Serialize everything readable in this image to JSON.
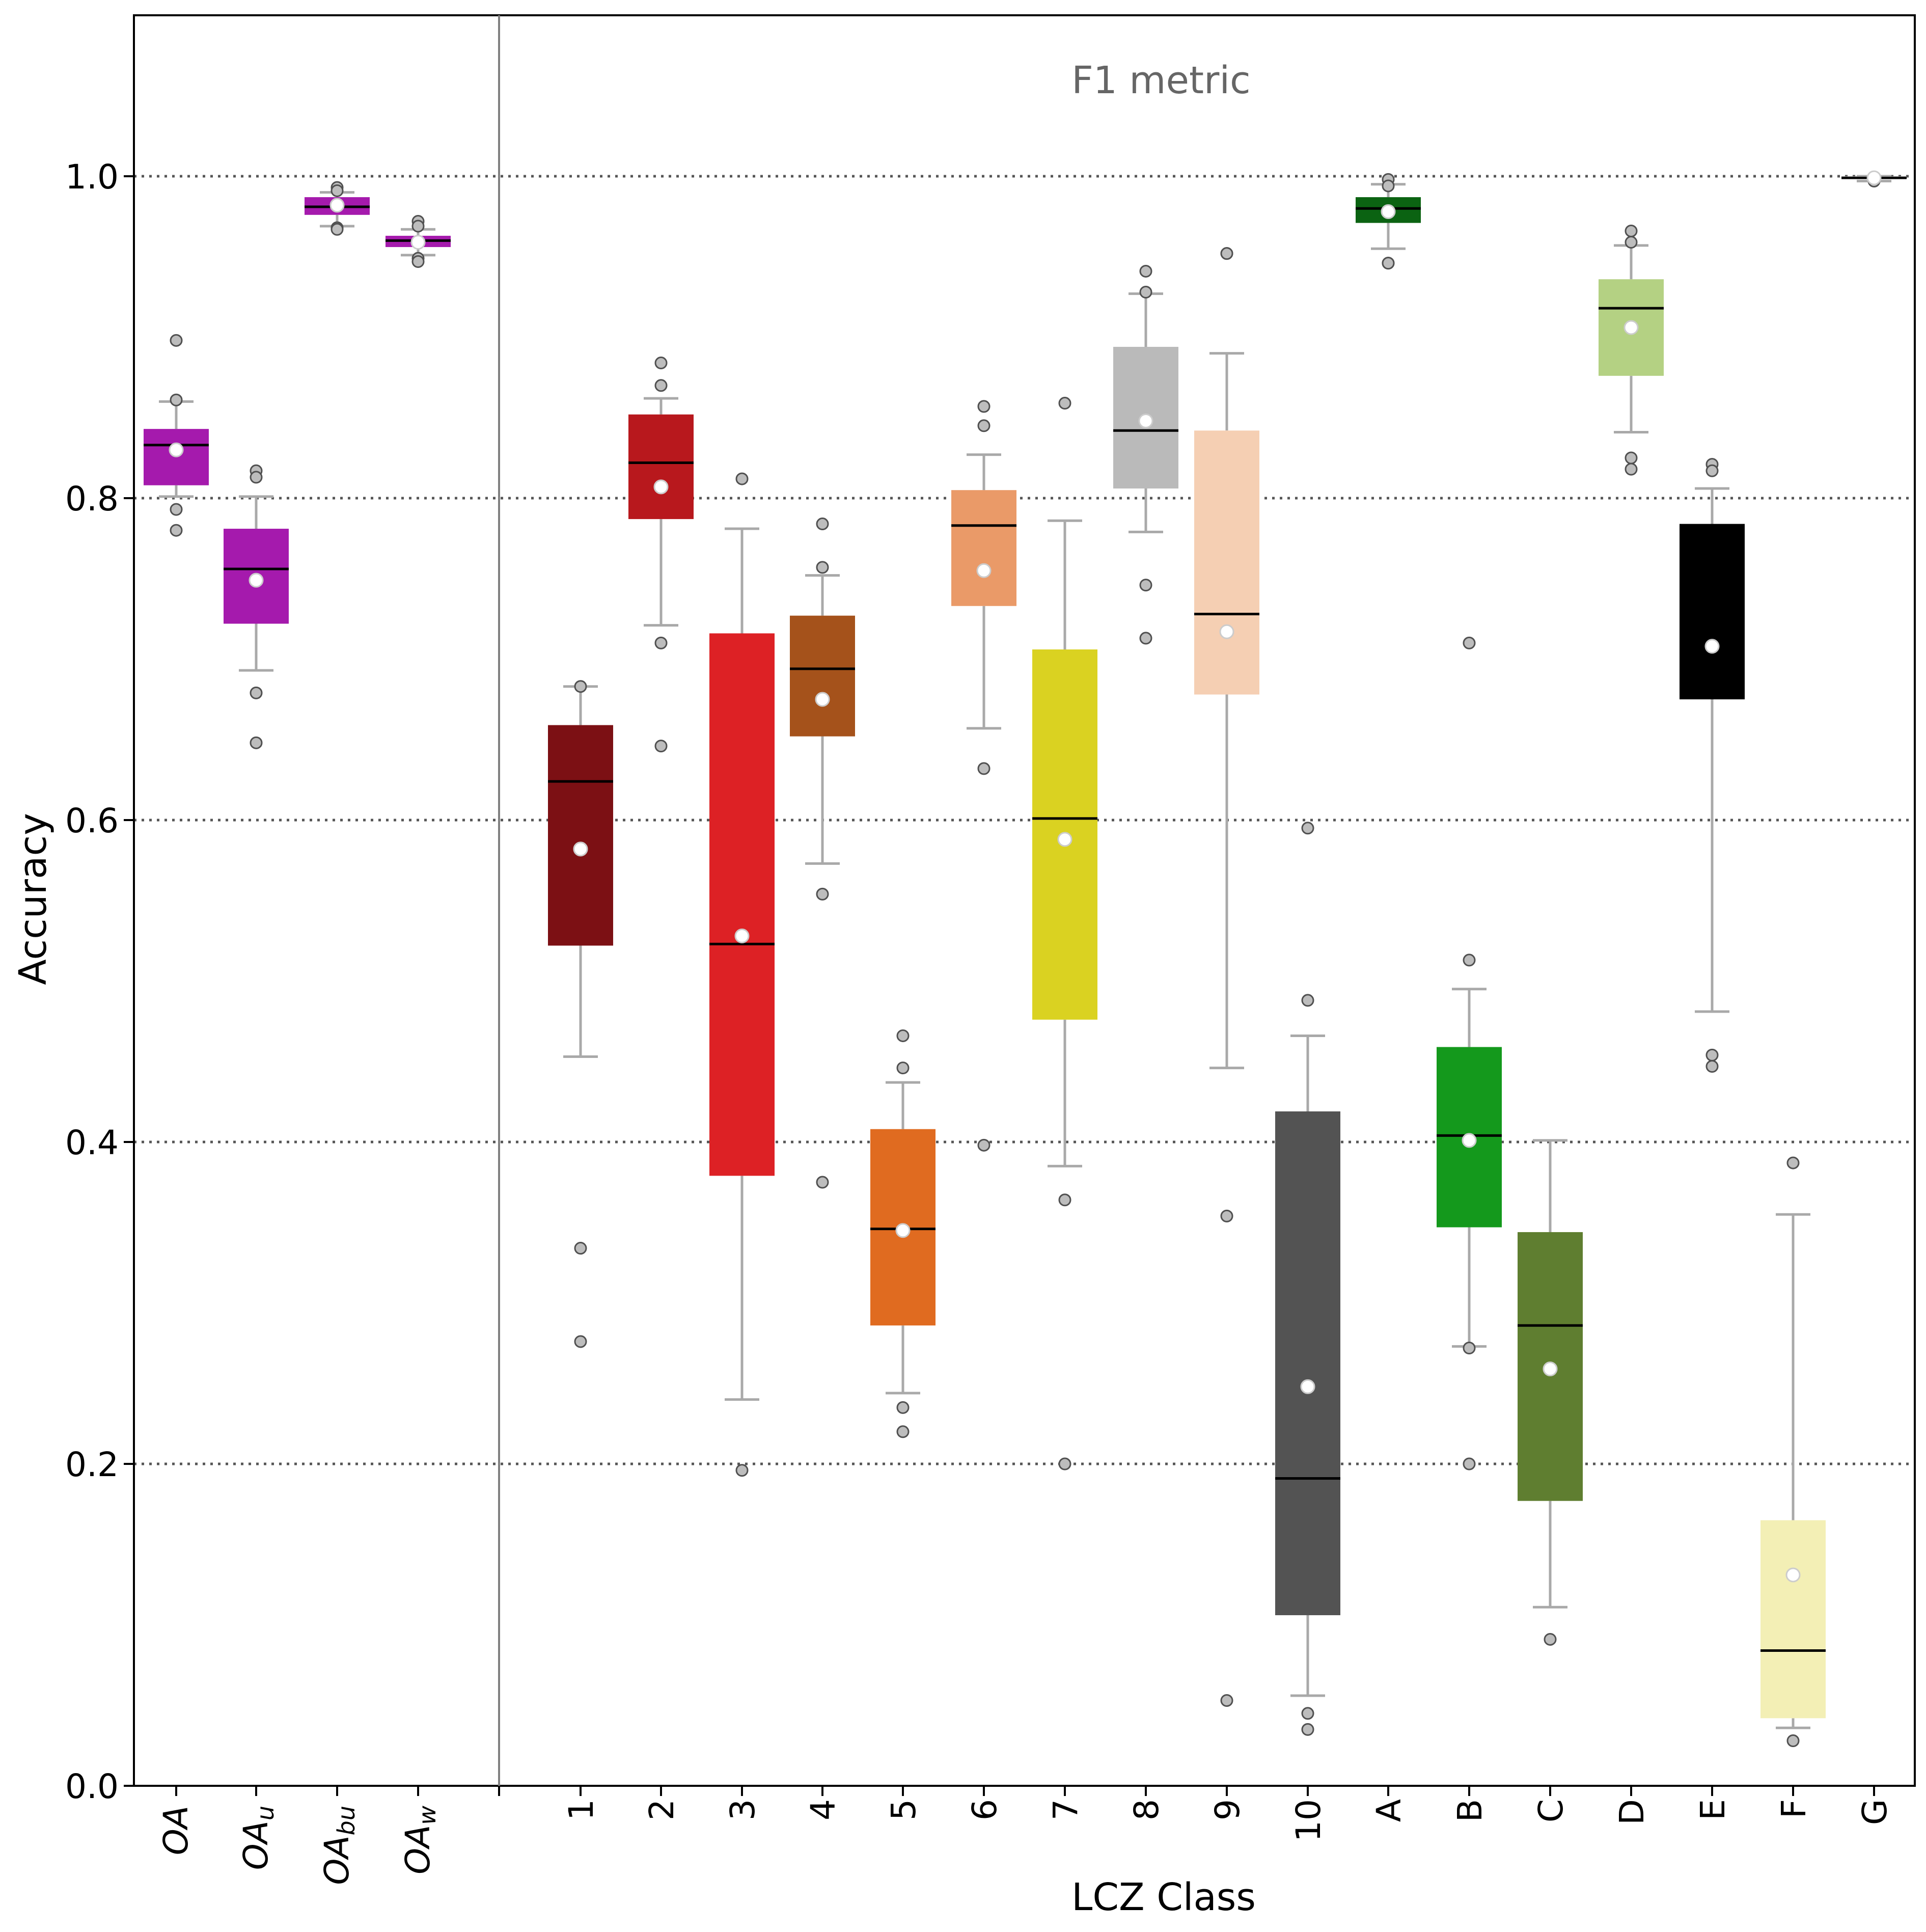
{
  "chart_data": {
    "type": "box",
    "title": "F1 metric",
    "xlabel": "LCZ Class",
    "ylabel": "Accuracy",
    "ylim": [
      0.0,
      1.1
    ],
    "yticks": [
      0.0,
      0.2,
      0.4,
      0.6,
      0.8,
      1.0
    ],
    "ytick_labels": [
      "0.0",
      "0.2",
      "0.4",
      "0.6",
      "0.8",
      "1.0"
    ],
    "grid": "horizontal dotted at major ticks",
    "overall_group": [
      {
        "label": "OA",
        "sub": "",
        "color": "#a51aad",
        "q1": 0.808,
        "median": 0.833,
        "q3": 0.843,
        "mean": 0.83,
        "whisker_low": 0.801,
        "whisker_high": 0.86,
        "outliers": [
          0.898,
          0.861,
          0.793,
          0.78
        ]
      },
      {
        "label": "OA",
        "sub": "u",
        "color": "#a51aad",
        "q1": 0.722,
        "median": 0.756,
        "q3": 0.781,
        "mean": 0.749,
        "whisker_low": 0.693,
        "whisker_high": 0.801,
        "outliers": [
          0.817,
          0.813,
          0.679,
          0.648
        ]
      },
      {
        "label": "OA",
        "sub": "bu",
        "color": "#a51aad",
        "q1": 0.976,
        "median": 0.981,
        "q3": 0.987,
        "mean": 0.982,
        "whisker_low": 0.969,
        "whisker_high": 0.99,
        "outliers": [
          0.993,
          0.991,
          0.968,
          0.967
        ]
      },
      {
        "label": "OA",
        "sub": "w",
        "color": "#a51aad",
        "q1": 0.956,
        "median": 0.96,
        "q3": 0.963,
        "mean": 0.959,
        "whisker_low": 0.951,
        "whisker_high": 0.967,
        "outliers": [
          0.972,
          0.969,
          0.949,
          0.947
        ]
      }
    ],
    "categories": [
      "1",
      "2",
      "3",
      "4",
      "5",
      "6",
      "7",
      "8",
      "9",
      "10",
      "A",
      "B",
      "C",
      "D",
      "E",
      "F",
      "G"
    ],
    "series": [
      {
        "name": "1",
        "color": "#7c1014",
        "q1": 0.522,
        "median": 0.624,
        "q3": 0.659,
        "mean": 0.582,
        "whisker_low": 0.453,
        "whisker_high": 0.683,
        "outliers": [
          0.683,
          0.334,
          0.276
        ]
      },
      {
        "name": "2",
        "color": "#b8181d",
        "q1": 0.787,
        "median": 0.822,
        "q3": 0.852,
        "mean": 0.807,
        "whisker_low": 0.721,
        "whisker_high": 0.862,
        "outliers": [
          0.884,
          0.87,
          0.71,
          0.646
        ]
      },
      {
        "name": "3",
        "color": "#dd2125",
        "q1": 0.379,
        "median": 0.523,
        "q3": 0.716,
        "mean": 0.528,
        "whisker_low": 0.24,
        "whisker_high": 0.781,
        "outliers": [
          0.812,
          0.196
        ]
      },
      {
        "name": "4",
        "color": "#a5521b",
        "q1": 0.652,
        "median": 0.694,
        "q3": 0.727,
        "mean": 0.675,
        "whisker_low": 0.573,
        "whisker_high": 0.752,
        "outliers": [
          0.784,
          0.757,
          0.554,
          0.375
        ]
      },
      {
        "name": "5",
        "color": "#e06b20",
        "q1": 0.286,
        "median": 0.346,
        "q3": 0.408,
        "mean": 0.345,
        "whisker_low": 0.244,
        "whisker_high": 0.437,
        "outliers": [
          0.466,
          0.446,
          0.235,
          0.22
        ]
      },
      {
        "name": "6",
        "color": "#ea9a68",
        "q1": 0.733,
        "median": 0.783,
        "q3": 0.805,
        "mean": 0.755,
        "whisker_low": 0.657,
        "whisker_high": 0.827,
        "outliers": [
          0.857,
          0.845,
          0.632,
          0.398
        ]
      },
      {
        "name": "7",
        "color": "#dad221",
        "q1": 0.476,
        "median": 0.601,
        "q3": 0.706,
        "mean": 0.588,
        "whisker_low": 0.385,
        "whisker_high": 0.786,
        "outliers": [
          0.859,
          0.364,
          0.2
        ]
      },
      {
        "name": "8",
        "color": "#bababa",
        "q1": 0.806,
        "median": 0.842,
        "q3": 0.894,
        "mean": 0.848,
        "whisker_low": 0.779,
        "whisker_high": 0.927,
        "outliers": [
          0.941,
          0.928,
          0.746,
          0.713
        ]
      },
      {
        "name": "9",
        "color": "#f5cfb3",
        "q1": 0.678,
        "median": 0.728,
        "q3": 0.842,
        "mean": 0.717,
        "whisker_low": 0.446,
        "whisker_high": 0.89,
        "outliers": [
          0.952,
          0.952,
          0.354,
          0.053
        ]
      },
      {
        "name": "10",
        "color": "#535353",
        "q1": 0.106,
        "median": 0.191,
        "q3": 0.419,
        "mean": 0.248,
        "whisker_low": 0.056,
        "whisker_high": 0.466,
        "outliers": [
          0.595,
          0.488,
          0.045,
          0.035
        ]
      },
      {
        "name": "A",
        "color": "#0b6312",
        "q1": 0.971,
        "median": 0.98,
        "q3": 0.987,
        "mean": 0.978,
        "whisker_low": 0.955,
        "whisker_high": 0.995,
        "outliers": [
          0.998,
          0.994,
          0.946,
          0.946
        ]
      },
      {
        "name": "B",
        "color": "#14991c",
        "q1": 0.347,
        "median": 0.404,
        "q3": 0.459,
        "mean": 0.401,
        "whisker_low": 0.273,
        "whisker_high": 0.495,
        "outliers": [
          0.513,
          0.71,
          0.272,
          0.2
        ]
      },
      {
        "name": "C",
        "color": "#5f7e30",
        "q1": 0.177,
        "median": 0.286,
        "q3": 0.344,
        "mean": 0.259,
        "whisker_low": 0.111,
        "whisker_high": 0.401,
        "outliers": [
          0.091
        ]
      },
      {
        "name": "D",
        "color": "#b4d183",
        "q1": 0.876,
        "median": 0.918,
        "q3": 0.936,
        "mean": 0.906,
        "whisker_low": 0.841,
        "whisker_high": 0.957,
        "outliers": [
          0.966,
          0.959,
          0.825,
          0.818
        ]
      },
      {
        "name": "E",
        "color": "#000000",
        "q1": 0.675,
        "median": 0.749,
        "q3": 0.784,
        "mean": 0.708,
        "whisker_low": 0.481,
        "whisker_high": 0.806,
        "outliers": [
          0.821,
          0.817,
          0.454,
          0.447
        ]
      },
      {
        "name": "F",
        "color": "#f3efb5",
        "q1": 0.042,
        "median": 0.084,
        "q3": 0.165,
        "mean": 0.131,
        "whisker_low": 0.036,
        "whisker_high": 0.355,
        "outliers": [
          0.387,
          0.028
        ]
      },
      {
        "name": "G",
        "color": "#ffffff",
        "q1": 0.998,
        "median": 0.999,
        "q3": 1.0,
        "mean": 0.999,
        "whisker_low": 0.997,
        "whisker_high": 1.0,
        "outliers": [
          0.997
        ]
      }
    ]
  }
}
